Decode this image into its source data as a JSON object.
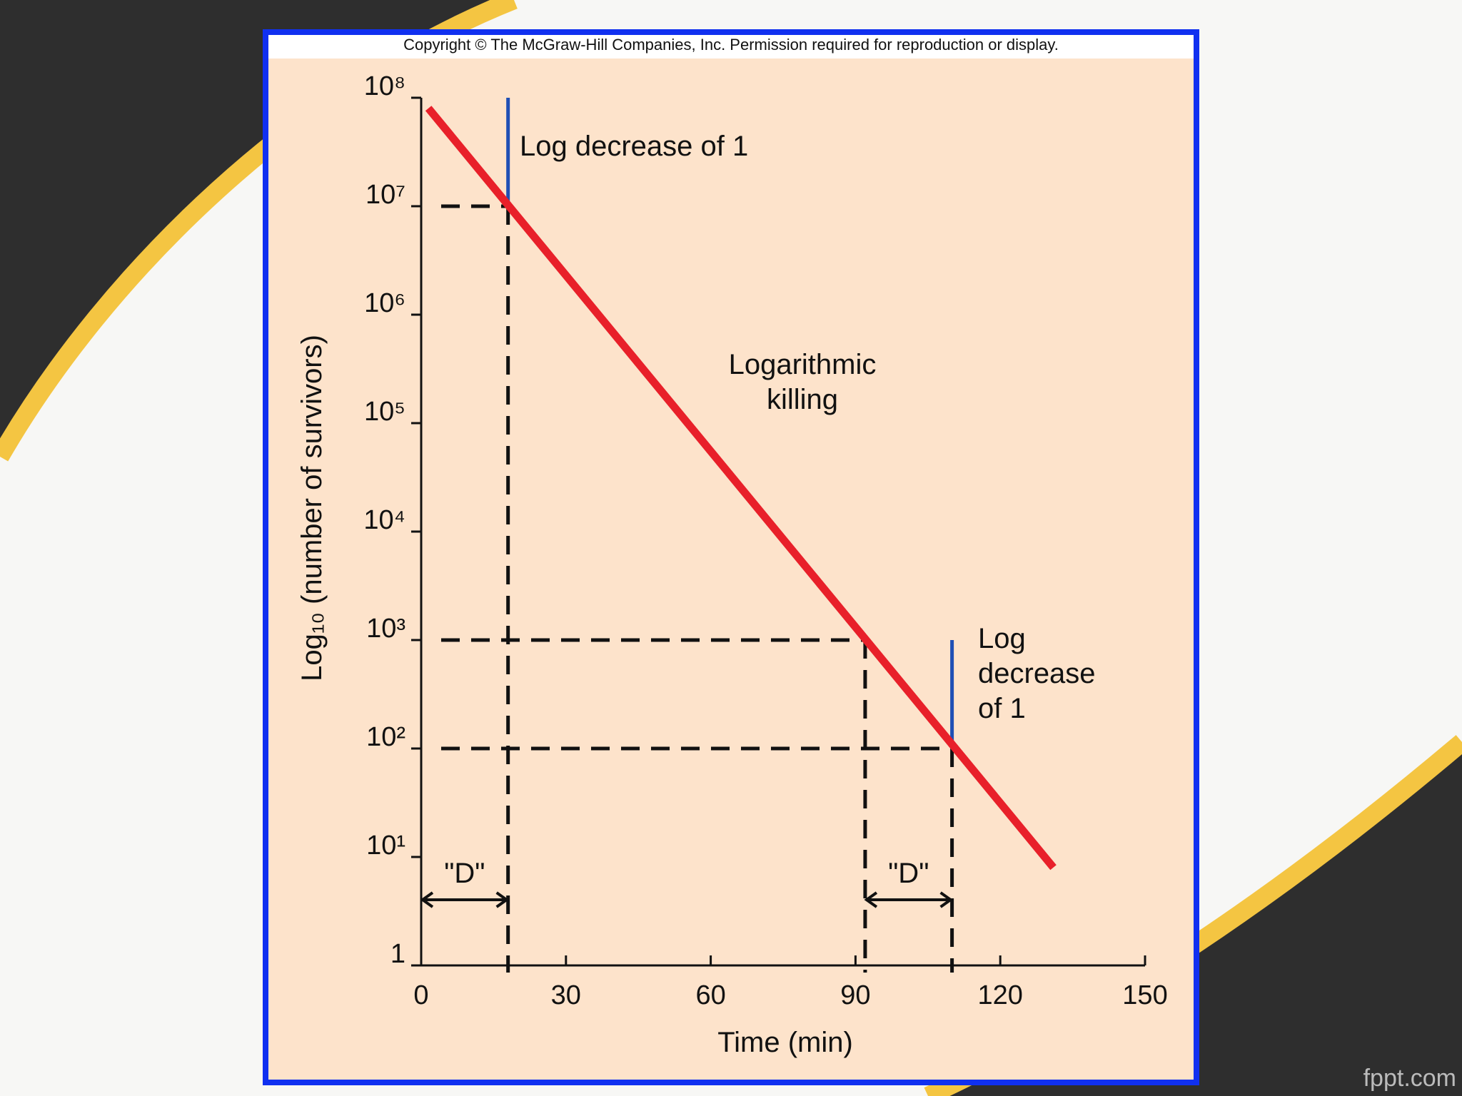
{
  "slide": {
    "watermark": "fppt.com"
  },
  "chart_data": {
    "type": "line",
    "copyright": "Copyright © The McGraw-Hill Companies, Inc. Permission required for reproduction or display.",
    "x_label": "Time (min)",
    "y_label": "Log₁₀ (number of survivors)",
    "y_log": true,
    "xlim": [
      0,
      150
    ],
    "xticks": [
      0,
      30,
      60,
      90,
      120,
      150
    ],
    "ylim": [
      1,
      100000000
    ],
    "yticks": [
      1,
      {
        "value": 10,
        "label": "10¹"
      },
      {
        "value": 100,
        "label": "10²"
      },
      {
        "value": 1000,
        "label": "10³"
      },
      {
        "value": 10000,
        "label": "10⁴"
      },
      {
        "value": 100000,
        "label": "10⁵"
      },
      {
        "value": 1000000,
        "label": "10⁶"
      },
      {
        "value": 10000000,
        "label": "10⁷"
      },
      {
        "value": 100000000,
        "label": "10⁸"
      }
    ],
    "series": [
      {
        "color": "#e8202a",
        "x": [
          1.5,
          131
        ],
        "values": [
          80000000,
          8
        ]
      }
    ],
    "reference_lines": [
      {
        "x": 18,
        "y": 10000000
      },
      {
        "x": 92,
        "y": 1000
      },
      {
        "x": 110,
        "y": 100
      }
    ],
    "log_decrease": [
      {
        "x": 18,
        "from": 100000000,
        "to": 10000000
      },
      {
        "x": 110,
        "from": 1000,
        "to": 100
      }
    ],
    "marker_color": "#1f4fb5",
    "d_spans": [
      {
        "from": 0,
        "to": 18,
        "label": "\"D\""
      },
      {
        "from": 92,
        "to": 110,
        "label": "\"D\""
      }
    ],
    "annotations": [
      {
        "lines": [
          "Log decrease of 1"
        ]
      },
      {
        "lines": [
          "Logarithmic",
          "killing"
        ]
      },
      {
        "lines": [
          "Log",
          "decrease",
          "of 1"
        ]
      }
    ]
  }
}
